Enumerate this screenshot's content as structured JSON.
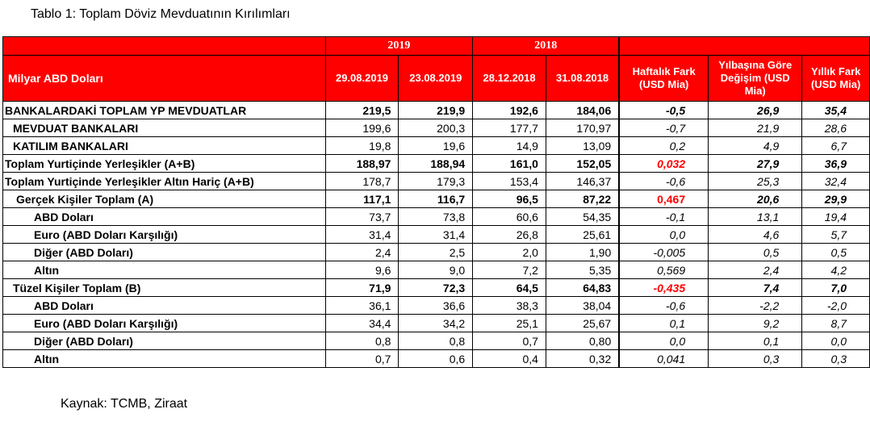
{
  "title": "Tablo 1: Toplam Döviz Mevduatının Kırılımları",
  "source": "Kaynak: TCMB, Ziraat",
  "header": {
    "year_2019": "2019",
    "year_2018": "2018",
    "unit_label": "Milyar ABD Doları",
    "columns": [
      "29.08.2019",
      "23.08.2019",
      "28.12.2018",
      "31.08.2018"
    ],
    "weekly": "Haftalık Fark (USD Mia)",
    "ytd": "Yılbaşına Göre Değişim (USD Mia)",
    "yearly": "Yıllık Fark (USD Mia)"
  },
  "colors": {
    "header_bg": "#ff0000",
    "highlight_text": "#ff0000"
  },
  "rows": [
    {
      "label": "BANKALARDAKİ TOPLAM YP MEVDUATLAR",
      "v": [
        "219,5",
        "219,9",
        "192,6",
        "184,06"
      ],
      "d": [
        "-0,5",
        "26,9",
        "35,4"
      ]
    },
    {
      "label": "MEVDUAT BANKALARI",
      "v": [
        "199,6",
        "200,3",
        "177,7",
        "170,97"
      ],
      "d": [
        "-0,7",
        "21,9",
        "28,6"
      ]
    },
    {
      "label": "KATILIM BANKALARI",
      "v": [
        "19,8",
        "19,6",
        "14,9",
        "13,09"
      ],
      "d": [
        "0,2",
        "4,9",
        "6,7"
      ]
    },
    {
      "label": "Toplam Yurtiçinde Yerleşikler (A+B)",
      "v": [
        "188,97",
        "188,94",
        "161,0",
        "152,05"
      ],
      "d": [
        "0,032",
        "27,9",
        "36,9"
      ]
    },
    {
      "label": "Toplam Yurtiçinde Yerleşikler Altın Hariç (A+B)",
      "v": [
        "178,7",
        "179,3",
        "153,4",
        "146,37"
      ],
      "d": [
        "-0,6",
        "25,3",
        "32,4"
      ]
    },
    {
      "label": "Gerçek Kişiler Toplam (A)",
      "v": [
        "117,1",
        "116,7",
        "96,5",
        "87,22"
      ],
      "d": [
        "0,467",
        "20,6",
        "29,9"
      ]
    },
    {
      "label": "ABD Doları",
      "v": [
        "73,7",
        "73,8",
        "60,6",
        "54,35"
      ],
      "d": [
        "-0,1",
        "13,1",
        "19,4"
      ]
    },
    {
      "label": "Euro (ABD Doları Karşılığı)",
      "v": [
        "31,4",
        "31,4",
        "26,8",
        "25,61"
      ],
      "d": [
        "0,0",
        "4,6",
        "5,7"
      ]
    },
    {
      "label": "Diğer (ABD Doları)",
      "v": [
        "2,4",
        "2,5",
        "2,0",
        "1,90"
      ],
      "d": [
        "-0,005",
        "0,5",
        "0,5"
      ]
    },
    {
      "label": "Altın",
      "v": [
        "9,6",
        "9,0",
        "7,2",
        "5,35"
      ],
      "d": [
        "0,569",
        "2,4",
        "4,2"
      ]
    },
    {
      "label": "Tüzel Kişiler Toplam (B)",
      "v": [
        "71,9",
        "72,3",
        "64,5",
        "64,83"
      ],
      "d": [
        "-0,435",
        "7,4",
        "7,0"
      ]
    },
    {
      "label": "ABD Doları",
      "v": [
        "36,1",
        "36,6",
        "38,3",
        "38,04"
      ],
      "d": [
        "-0,6",
        "-2,2",
        "-2,0"
      ]
    },
    {
      "label": "Euro (ABD Doları Karşılığı)",
      "v": [
        "34,4",
        "34,2",
        "25,1",
        "25,67"
      ],
      "d": [
        "0,1",
        "9,2",
        "8,7"
      ]
    },
    {
      "label": "Diğer (ABD Doları)",
      "v": [
        "0,8",
        "0,8",
        "0,7",
        "0,80"
      ],
      "d": [
        "0,0",
        "0,1",
        "0,0"
      ]
    },
    {
      "label": "Altın",
      "v": [
        "0,7",
        "0,6",
        "0,4",
        "0,32"
      ],
      "d": [
        "0,041",
        "0,3",
        "0,3"
      ]
    }
  ]
}
